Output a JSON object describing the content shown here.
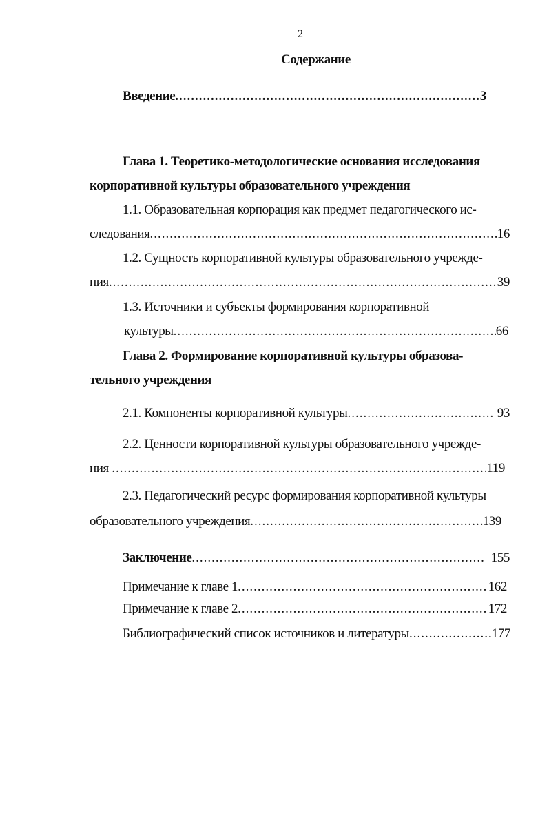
{
  "page_number": "2",
  "title": "Содержание",
  "entries": {
    "intro": {
      "label": "Введение",
      "page": "3"
    },
    "ch1": {
      "line1": "Глава 1. Теоретико-методологические основания исследования",
      "line2": "корпоративной культуры образовательного учреждения"
    },
    "s11": {
      "line1": "1.1. Образовательная корпорация как предмет педагогического ис-",
      "line2": "следования",
      "page": "16"
    },
    "s12": {
      "line1": "1.2. Сущность корпоративной культуры образовательного учрежде-",
      "line2": "ния",
      "page": "39"
    },
    "s13": {
      "line1": "1.3. Источники и субъекты формирования корпоративной",
      "line2": "культуры ",
      "page": "66"
    },
    "ch2": {
      "line1": "Глава 2. Формирование корпоративной культуры  образова-",
      "line2": "тельного учреждения"
    },
    "s21": {
      "label": "2.1. Компоненты корпоративной культуры",
      "page": " 93"
    },
    "s22": {
      "line1": "2.2. Ценности корпоративной культуры образовательного учрежде-",
      "line2": "ния ",
      "page": "119"
    },
    "s23": {
      "line1": "2.3. Педагогический ресурс формирования корпоративной культуры",
      "line2": "образовательного учреждения",
      "page": "139"
    },
    "conclusion": {
      "label": "Заключение",
      "page": "  155"
    },
    "note1": {
      "label": "Примечание к главе 1",
      "page": "162"
    },
    "note2": {
      "label": "Примечание к главе 2",
      "page": "172"
    },
    "bibliography": {
      "label": "Библиографический список источников и литературы",
      "page": "177"
    }
  }
}
